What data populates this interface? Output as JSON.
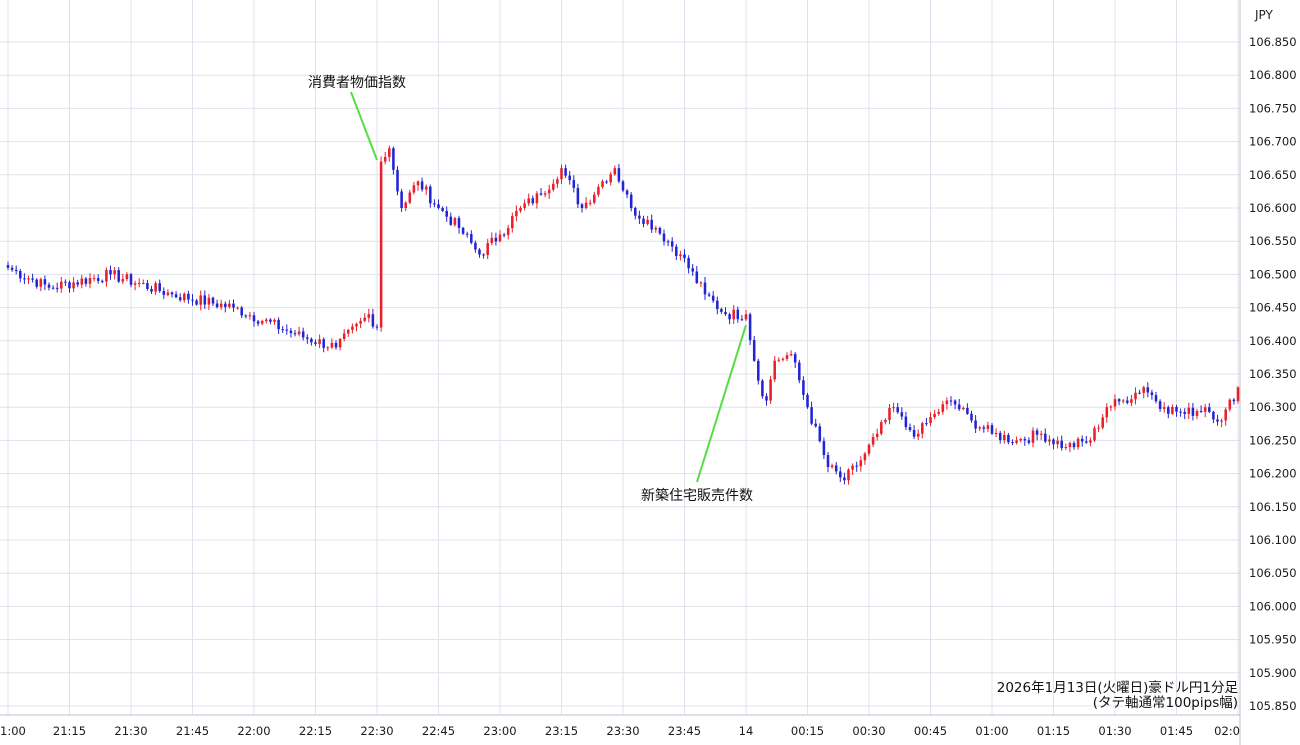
{
  "chart_data": {
    "type": "candlestick",
    "currency": "JPY",
    "caption_line1": "2026年1月13日(火曜日)豪ドル円1分足",
    "caption_line2": "(タテ軸通常100pips幅)",
    "ylim": [
      105.85,
      106.9
    ],
    "yticks": [
      "106.850",
      "106.800",
      "106.750",
      "106.700",
      "106.650",
      "106.600",
      "106.550",
      "106.500",
      "106.450",
      "106.400",
      "106.350",
      "106.300",
      "106.250",
      "106.200",
      "106.150",
      "106.100",
      "106.050",
      "106.000",
      "105.950",
      "105.900",
      "105.850"
    ],
    "xticks": [
      "1:00",
      "21:15",
      "21:30",
      "21:45",
      "22:00",
      "22:15",
      "22:30",
      "22:45",
      "23:00",
      "23:15",
      "23:30",
      "23:45",
      "14",
      "00:15",
      "00:30",
      "00:45",
      "01:00",
      "01:15",
      "01:30",
      "01:45",
      "02:0"
    ],
    "annotations": [
      {
        "text": "消費者物価指数",
        "time_index": 90
      },
      {
        "text": "新築住宅販売件数",
        "time_index": 180
      }
    ],
    "colors": {
      "up": "#e8202a",
      "down": "#2323d6",
      "grid": "#dde3ec",
      "annotation_line": "#55dd44"
    },
    "anchors": [
      [
        0,
        106.51
      ],
      [
        10,
        106.48
      ],
      [
        25,
        106.5
      ],
      [
        40,
        106.47
      ],
      [
        55,
        106.45
      ],
      [
        70,
        106.41
      ],
      [
        80,
        106.39
      ],
      [
        88,
        106.44
      ],
      [
        90,
        106.42
      ],
      [
        91,
        106.67
      ],
      [
        93,
        106.69
      ],
      [
        96,
        106.6
      ],
      [
        100,
        106.64
      ],
      [
        105,
        106.6
      ],
      [
        110,
        106.57
      ],
      [
        115,
        106.53
      ],
      [
        120,
        106.56
      ],
      [
        125,
        106.6
      ],
      [
        130,
        106.62
      ],
      [
        135,
        106.66
      ],
      [
        140,
        106.6
      ],
      [
        145,
        106.64
      ],
      [
        148,
        106.66
      ],
      [
        152,
        106.6
      ],
      [
        158,
        106.57
      ],
      [
        164,
        106.53
      ],
      [
        170,
        106.47
      ],
      [
        175,
        106.44
      ],
      [
        180,
        106.44
      ],
      [
        183,
        106.34
      ],
      [
        185,
        106.31
      ],
      [
        187,
        106.37
      ],
      [
        191,
        106.38
      ],
      [
        195,
        106.3
      ],
      [
        200,
        106.21
      ],
      [
        204,
        106.19
      ],
      [
        208,
        106.22
      ],
      [
        212,
        106.26
      ],
      [
        216,
        106.3
      ],
      [
        219,
        106.27
      ],
      [
        222,
        106.26
      ],
      [
        226,
        106.29
      ],
      [
        230,
        106.31
      ],
      [
        235,
        106.28
      ],
      [
        240,
        106.26
      ],
      [
        246,
        106.25
      ],
      [
        252,
        106.26
      ],
      [
        258,
        106.24
      ],
      [
        264,
        106.25
      ],
      [
        268,
        106.3
      ],
      [
        272,
        106.31
      ],
      [
        277,
        106.33
      ],
      [
        282,
        106.3
      ],
      [
        287,
        106.29
      ],
      [
        292,
        106.3
      ],
      [
        296,
        106.28
      ],
      [
        300,
        106.33
      ]
    ]
  }
}
